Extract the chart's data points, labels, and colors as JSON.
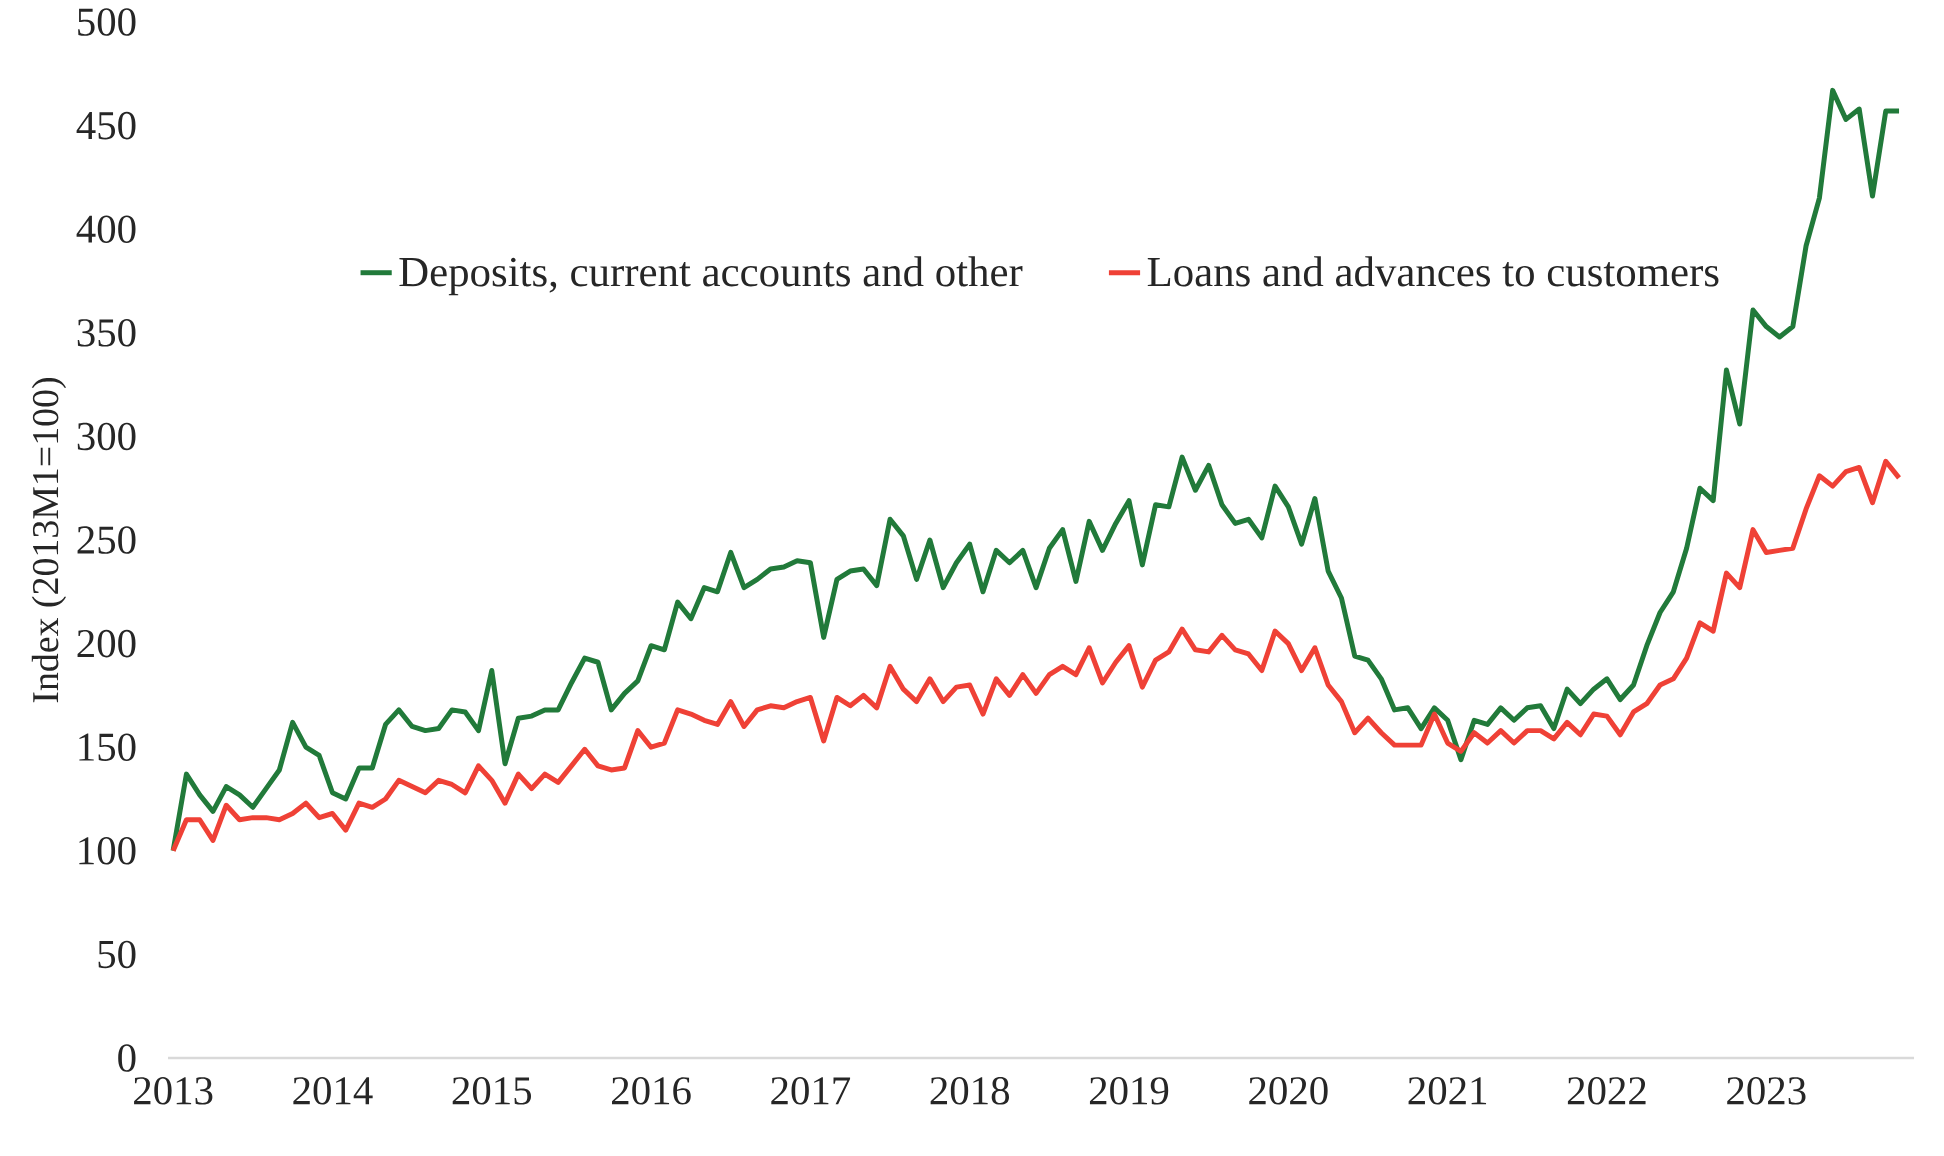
{
  "chart_data": {
    "type": "line",
    "ylabel": "Index (2013M1=100)",
    "x": [
      "2013-01",
      "2013-02",
      "2013-03",
      "2013-04",
      "2013-05",
      "2013-06",
      "2013-07",
      "2013-08",
      "2013-09",
      "2013-10",
      "2013-11",
      "2013-12",
      "2014-01",
      "2014-02",
      "2014-03",
      "2014-04",
      "2014-05",
      "2014-06",
      "2014-07",
      "2014-08",
      "2014-09",
      "2014-10",
      "2014-11",
      "2014-12",
      "2015-01",
      "2015-02",
      "2015-03",
      "2015-04",
      "2015-05",
      "2015-06",
      "2015-07",
      "2015-08",
      "2015-09",
      "2015-10",
      "2015-11",
      "2015-12",
      "2016-01",
      "2016-02",
      "2016-03",
      "2016-04",
      "2016-05",
      "2016-06",
      "2016-07",
      "2016-08",
      "2016-09",
      "2016-10",
      "2016-11",
      "2016-12",
      "2017-01",
      "2017-02",
      "2017-03",
      "2017-04",
      "2017-05",
      "2017-06",
      "2017-07",
      "2017-08",
      "2017-09",
      "2017-10",
      "2017-11",
      "2017-12",
      "2018-01",
      "2018-02",
      "2018-03",
      "2018-04",
      "2018-05",
      "2018-06",
      "2018-07",
      "2018-08",
      "2018-09",
      "2018-10",
      "2018-11",
      "2018-12",
      "2019-01",
      "2019-02",
      "2019-03",
      "2019-04",
      "2019-05",
      "2019-06",
      "2019-07",
      "2019-08",
      "2019-09",
      "2019-10",
      "2019-11",
      "2019-12",
      "2020-01",
      "2020-02",
      "2020-03",
      "2020-04",
      "2020-05",
      "2020-06",
      "2020-07",
      "2020-08",
      "2020-09",
      "2020-10",
      "2020-11",
      "2020-12",
      "2021-01",
      "2021-02",
      "2021-03",
      "2021-04",
      "2021-05",
      "2021-06",
      "2021-07",
      "2021-08",
      "2021-09",
      "2021-10",
      "2021-11",
      "2021-12",
      "2022-01",
      "2022-02",
      "2022-03",
      "2022-04",
      "2022-05",
      "2022-06",
      "2022-07",
      "2022-08",
      "2022-09",
      "2022-10",
      "2022-11",
      "2022-12",
      "2023-01",
      "2023-02",
      "2023-03",
      "2023-04",
      "2023-05",
      "2023-06",
      "2023-07",
      "2023-08",
      "2023-09",
      "2023-10",
      "2023-11"
    ],
    "series": [
      {
        "name": "Deposits, current accounts and other",
        "color": "#217a3a",
        "values": [
          100,
          137,
          127,
          119,
          131,
          127,
          121,
          130,
          139,
          162,
          150,
          146,
          128,
          125,
          140,
          140,
          161,
          168,
          160,
          158,
          159,
          168,
          167,
          158,
          187,
          142,
          164,
          165,
          168,
          168,
          181,
          193,
          191,
          168,
          176,
          182,
          199,
          197,
          220,
          212,
          227,
          225,
          244,
          227,
          231,
          236,
          237,
          240,
          239,
          203,
          231,
          235,
          236,
          228,
          260,
          252,
          231,
          250,
          227,
          239,
          248,
          225,
          245,
          239,
          245,
          227,
          246,
          255,
          230,
          259,
          245,
          258,
          269,
          238,
          267,
          266,
          290,
          274,
          286,
          267,
          258,
          260,
          251,
          276,
          266,
          248,
          270,
          235,
          222,
          194,
          192,
          183,
          168,
          169,
          159,
          169,
          163,
          144,
          163,
          161,
          169,
          163,
          169,
          170,
          159,
          178,
          171,
          178,
          183,
          173,
          180,
          199,
          215,
          225,
          246,
          275,
          269,
          332,
          306,
          361,
          353,
          348,
          353,
          392,
          415,
          467,
          453,
          458,
          416,
          457,
          457
        ]
      },
      {
        "name": "Loans and advances to customers",
        "color": "#ef4136",
        "values": [
          100,
          115,
          115,
          105,
          122,
          115,
          116,
          116,
          115,
          118,
          123,
          116,
          118,
          110,
          123,
          121,
          125,
          134,
          131,
          128,
          134,
          132,
          128,
          141,
          134,
          123,
          137,
          130,
          137,
          133,
          141,
          149,
          141,
          139,
          140,
          158,
          150,
          152,
          168,
          166,
          163,
          161,
          172,
          160,
          168,
          170,
          169,
          172,
          174,
          153,
          174,
          170,
          175,
          169,
          189,
          178,
          172,
          183,
          172,
          179,
          180,
          166,
          183,
          175,
          185,
          176,
          185,
          189,
          185,
          198,
          181,
          191,
          199,
          179,
          192,
          196,
          207,
          197,
          196,
          204,
          197,
          195,
          187,
          206,
          200,
          187,
          198,
          180,
          172,
          157,
          164,
          157,
          151,
          151,
          151,
          166,
          152,
          148,
          157,
          152,
          158,
          152,
          158,
          158,
          154,
          162,
          156,
          166,
          165,
          156,
          167,
          171,
          180,
          183,
          193,
          210,
          206,
          234,
          227,
          255,
          244,
          245,
          246,
          265,
          281,
          276,
          283,
          285,
          268,
          288,
          280
        ]
      }
    ],
    "xlim": [
      "2012-12-20",
      "2023-12-05"
    ],
    "xticks": [
      "2013",
      "2014",
      "2015",
      "2016",
      "2017",
      "2018",
      "2019",
      "2020",
      "2021",
      "2022",
      "2023"
    ],
    "ylim": [
      0,
      500
    ],
    "yticks": [
      0,
      50,
      100,
      150,
      200,
      250,
      300,
      350,
      400,
      450,
      500
    ],
    "legend": "top",
    "grid": false,
    "marker": "none",
    "line_style": "solid"
  }
}
